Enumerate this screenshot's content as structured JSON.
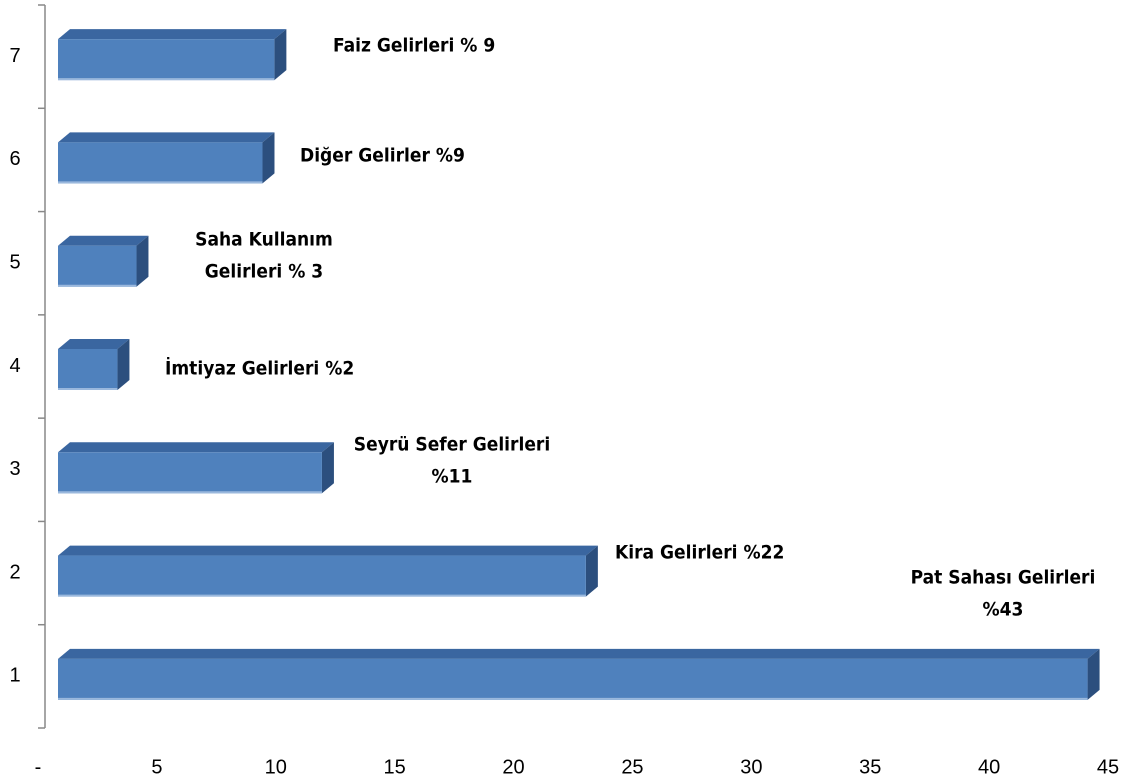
{
  "chart_data": {
    "type": "bar",
    "orientation": "horizontal",
    "categories": [
      "1",
      "2",
      "3",
      "4",
      "5",
      "6",
      "7"
    ],
    "values": [
      43.3,
      22.2,
      11.1,
      2.5,
      3.3,
      8.6,
      9.1
    ],
    "color": "#4f81bd",
    "annotations": [
      [
        "Pat Sahası Gelirleri",
        "%43"
      ],
      [
        "Kira Gelirleri %22"
      ],
      [
        "Seyrü Sefer Gelirleri",
        "%11"
      ],
      [
        "İmtiyaz Gelirleri %2"
      ],
      [
        "Saha Kullanım",
        "Gelirleri % 3"
      ],
      [
        "Diğer Gelirler %9"
      ],
      [
        "Faiz Gelirleri % 9"
      ]
    ],
    "xlim": [
      0,
      45
    ],
    "xticks": [
      {
        "value": 0,
        "label": "-"
      },
      5,
      10,
      15,
      20,
      25,
      30,
      35,
      40,
      45
    ]
  }
}
